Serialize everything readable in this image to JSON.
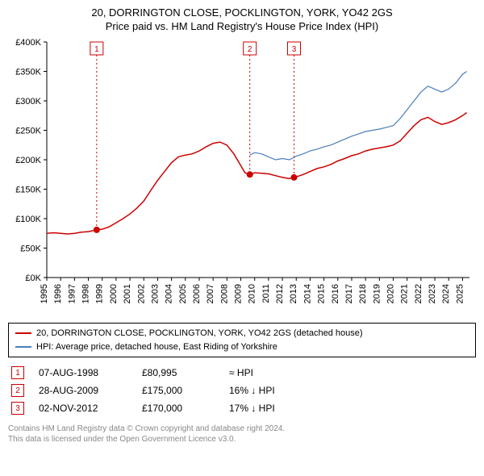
{
  "titles": {
    "main": "20, DORRINGTON CLOSE, POCKLINGTON, YORK, YO42 2GS",
    "sub": "Price paid vs. HM Land Registry's House Price Index (HPI)"
  },
  "chart": {
    "type": "line",
    "background_color": "#ffffff",
    "font_family": "Arial",
    "axis_fontsize": 11,
    "axis_color": "#000000",
    "xlim": [
      1995,
      2025.5
    ],
    "ylim": [
      0,
      400000
    ],
    "y_ticks": [
      0,
      50000,
      100000,
      150000,
      200000,
      250000,
      300000,
      350000,
      400000
    ],
    "y_tick_labels": [
      "£0K",
      "£50K",
      "£100K",
      "£150K",
      "£200K",
      "£250K",
      "£300K",
      "£350K",
      "£400K"
    ],
    "x_ticks": [
      1995,
      1996,
      1997,
      1998,
      1999,
      2000,
      2001,
      2002,
      2003,
      2004,
      2005,
      2006,
      2007,
      2008,
      2009,
      2010,
      2011,
      2012,
      2013,
      2014,
      2015,
      2016,
      2017,
      2018,
      2019,
      2020,
      2021,
      2022,
      2023,
      2024,
      2025
    ],
    "series": [
      {
        "id": "price_paid",
        "label": "20, DORRINGTON CLOSE, POCKLINGTON, YORK, YO42 2GS (detached house)",
        "color": "#cc0000",
        "line_width": 1.5,
        "points": [
          [
            1995.0,
            75000
          ],
          [
            1995.5,
            76000
          ],
          [
            1996.0,
            75000
          ],
          [
            1996.5,
            74000
          ],
          [
            1997.0,
            75000
          ],
          [
            1997.5,
            77000
          ],
          [
            1998.0,
            78000
          ],
          [
            1998.6,
            80995
          ],
          [
            1999.0,
            82000
          ],
          [
            1999.5,
            86000
          ],
          [
            2000.0,
            93000
          ],
          [
            2000.5,
            100000
          ],
          [
            2001.0,
            108000
          ],
          [
            2001.5,
            118000
          ],
          [
            2002.0,
            130000
          ],
          [
            2002.5,
            148000
          ],
          [
            2003.0,
            165000
          ],
          [
            2003.5,
            180000
          ],
          [
            2004.0,
            195000
          ],
          [
            2004.5,
            205000
          ],
          [
            2005.0,
            208000
          ],
          [
            2005.5,
            210000
          ],
          [
            2006.0,
            215000
          ],
          [
            2006.5,
            222000
          ],
          [
            2007.0,
            228000
          ],
          [
            2007.5,
            230000
          ],
          [
            2008.0,
            225000
          ],
          [
            2008.5,
            210000
          ],
          [
            2009.0,
            190000
          ],
          [
            2009.3,
            178000
          ],
          [
            2009.65,
            175000
          ],
          [
            2010.0,
            178000
          ],
          [
            2010.5,
            177000
          ],
          [
            2011.0,
            176000
          ],
          [
            2011.5,
            173000
          ],
          [
            2012.0,
            170000
          ],
          [
            2012.5,
            168000
          ],
          [
            2012.84,
            170000
          ],
          [
            2013.0,
            171000
          ],
          [
            2013.5,
            175000
          ],
          [
            2014.0,
            180000
          ],
          [
            2014.5,
            185000
          ],
          [
            2015.0,
            188000
          ],
          [
            2015.5,
            192000
          ],
          [
            2016.0,
            198000
          ],
          [
            2016.5,
            202000
          ],
          [
            2017.0,
            207000
          ],
          [
            2017.5,
            210000
          ],
          [
            2018.0,
            215000
          ],
          [
            2018.5,
            218000
          ],
          [
            2019.0,
            220000
          ],
          [
            2019.5,
            222000
          ],
          [
            2020.0,
            225000
          ],
          [
            2020.5,
            232000
          ],
          [
            2021.0,
            245000
          ],
          [
            2021.5,
            258000
          ],
          [
            2022.0,
            268000
          ],
          [
            2022.5,
            272000
          ],
          [
            2023.0,
            265000
          ],
          [
            2023.5,
            260000
          ],
          [
            2024.0,
            263000
          ],
          [
            2024.5,
            268000
          ],
          [
            2025.0,
            275000
          ],
          [
            2025.3,
            280000
          ]
        ]
      },
      {
        "id": "hpi",
        "label": "HPI: Average price, detached house, East Riding of Yorkshire",
        "color": "#4a7ebb",
        "line_width": 1.2,
        "points": [
          [
            2009.65,
            208000
          ],
          [
            2010.0,
            212000
          ],
          [
            2010.5,
            210000
          ],
          [
            2011.0,
            205000
          ],
          [
            2011.5,
            200000
          ],
          [
            2012.0,
            202000
          ],
          [
            2012.5,
            200000
          ],
          [
            2012.84,
            204000
          ],
          [
            2013.0,
            206000
          ],
          [
            2013.5,
            210000
          ],
          [
            2014.0,
            215000
          ],
          [
            2014.5,
            218000
          ],
          [
            2015.0,
            222000
          ],
          [
            2015.5,
            225000
          ],
          [
            2016.0,
            230000
          ],
          [
            2016.5,
            235000
          ],
          [
            2017.0,
            240000
          ],
          [
            2017.5,
            244000
          ],
          [
            2018.0,
            248000
          ],
          [
            2018.5,
            250000
          ],
          [
            2019.0,
            252000
          ],
          [
            2019.5,
            255000
          ],
          [
            2020.0,
            258000
          ],
          [
            2020.5,
            270000
          ],
          [
            2021.0,
            285000
          ],
          [
            2021.5,
            300000
          ],
          [
            2022.0,
            315000
          ],
          [
            2022.5,
            325000
          ],
          [
            2023.0,
            320000
          ],
          [
            2023.5,
            315000
          ],
          [
            2024.0,
            320000
          ],
          [
            2024.5,
            330000
          ],
          [
            2025.0,
            345000
          ],
          [
            2025.3,
            350000
          ]
        ]
      }
    ],
    "sale_markers": [
      {
        "n": "1",
        "x": 1998.6,
        "y": 80995,
        "color": "#cc0000"
      },
      {
        "n": "2",
        "x": 2009.65,
        "y": 175000,
        "color": "#cc0000"
      },
      {
        "n": "3",
        "x": 2012.84,
        "y": 170000,
        "color": "#cc0000"
      }
    ],
    "vline_color": "#cc0000",
    "vline_dash": "2,3",
    "marker_radius": 4
  },
  "legend": [
    {
      "color": "#cc0000",
      "text": "20, DORRINGTON CLOSE, POCKLINGTON, YORK, YO42 2GS (detached house)"
    },
    {
      "color": "#4a7ebb",
      "text": "HPI: Average price, detached house, East Riding of Yorkshire"
    }
  ],
  "sales": [
    {
      "n": "1",
      "color": "#cc0000",
      "date": "07-AUG-1998",
      "price": "£80,995",
      "rel": "≈ HPI"
    },
    {
      "n": "2",
      "color": "#cc0000",
      "date": "28-AUG-2009",
      "price": "£175,000",
      "rel": "16% ↓ HPI"
    },
    {
      "n": "3",
      "color": "#cc0000",
      "date": "02-NOV-2012",
      "price": "£170,000",
      "rel": "17% ↓ HPI"
    }
  ],
  "footer": {
    "line1": "Contains HM Land Registry data © Crown copyright and database right 2024.",
    "line2": "This data is licensed under the Open Government Licence v3.0."
  }
}
